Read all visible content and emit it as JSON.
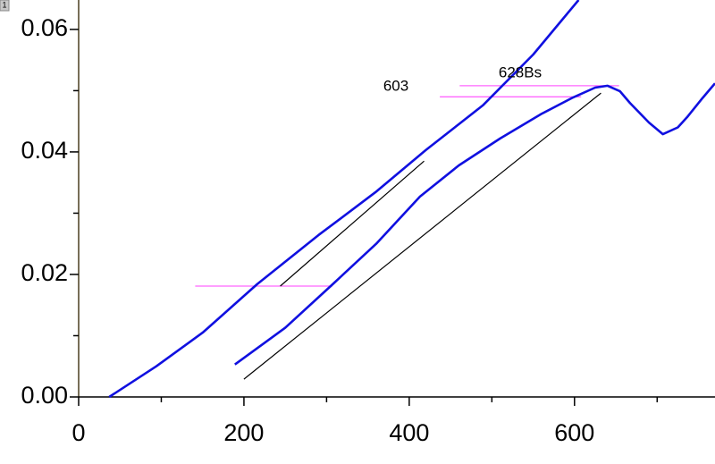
{
  "layer_label": "1",
  "chart_data": {
    "type": "line",
    "xlim": [
      0,
      770
    ],
    "ylim": [
      0,
      0.0648
    ],
    "xticks": [
      0,
      200,
      400,
      600
    ],
    "xticks_minor": [
      100,
      300,
      500,
      700
    ],
    "yticks": [
      {
        "value": 0,
        "label": "0.00"
      },
      {
        "value": 0.02,
        "label": "0.02"
      },
      {
        "value": 0.04,
        "label": "0.04"
      },
      {
        "value": 0.06,
        "label": "0.06"
      }
    ],
    "yticks_minor": [
      0.01,
      0.03,
      0.05
    ],
    "series": [
      {
        "name": "603",
        "color": "#1010e0",
        "x": [
          37,
          94,
          150,
          216,
          290,
          359,
          420,
          489,
          550,
          605
        ],
        "values": [
          0,
          0.005,
          0.0105,
          0.0184,
          0.0264,
          0.0334,
          0.0403,
          0.0476,
          0.0559,
          0.0648
        ]
      },
      {
        "name": "628Bs",
        "color": "#1010e0",
        "x": [
          189,
          250,
          305,
          360,
          413,
          460,
          510,
          560,
          597,
          625,
          640,
          655,
          667,
          690,
          707,
          725,
          737,
          755,
          770
        ],
        "values": [
          0.0053,
          0.0113,
          0.0181,
          0.025,
          0.0327,
          0.0378,
          0.0422,
          0.0462,
          0.0488,
          0.0505,
          0.0508,
          0.0499,
          0.048,
          0.0448,
          0.0429,
          0.044,
          0.0458,
          0.0488,
          0.0512
        ]
      }
    ],
    "tangents": [
      {
        "color": "#000000",
        "x": [
          244,
          418
        ],
        "values": [
          0.0181,
          0.0385
        ]
      },
      {
        "color": "#000000",
        "x": [
          200,
          632
        ],
        "values": [
          0.0029,
          0.0496
        ]
      }
    ],
    "levels": [
      {
        "color": "#ff66ff",
        "x": [
          141,
          307
        ],
        "values": [
          0.0181,
          0.0181
        ]
      },
      {
        "color": "#ff66ff",
        "x": [
          437,
          608
        ],
        "values": [
          0.049,
          0.049
        ]
      },
      {
        "color": "#ff66ff",
        "x": [
          461,
          654
        ],
        "values": [
          0.0508,
          0.0508
        ]
      }
    ]
  }
}
